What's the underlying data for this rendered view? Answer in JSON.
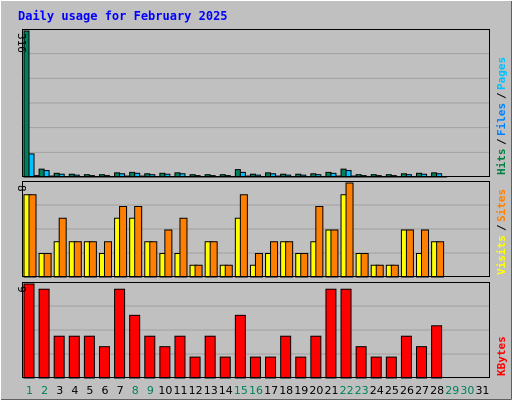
{
  "chart_data": {
    "type": "bar",
    "title": "Daily usage for February 2025",
    "categories": [
      "1",
      "2",
      "3",
      "4",
      "5",
      "6",
      "7",
      "8",
      "9",
      "10",
      "11",
      "12",
      "13",
      "14",
      "15",
      "16",
      "17",
      "18",
      "19",
      "20",
      "21",
      "22",
      "23",
      "24",
      "25",
      "26",
      "27",
      "28",
      "29",
      "30",
      "31"
    ],
    "weekend_days": [
      "1",
      "2",
      "8",
      "9",
      "15",
      "16",
      "22",
      "23",
      "29",
      "30"
    ],
    "panels": [
      {
        "name": "hits",
        "ymax_label": "316",
        "ylim": [
          0,
          316
        ],
        "side_labels": [
          {
            "text": "Hits",
            "color": "#008040"
          },
          {
            "text": "/",
            "color": "#000000"
          },
          {
            "text": "Files",
            "color": "#0080FF"
          },
          {
            "text": "/",
            "color": "#000000"
          },
          {
            "text": "Pages",
            "color": "#00C0FF"
          }
        ],
        "series": [
          {
            "name": "Hits",
            "color": "#00805C",
            "values": [
              316,
              17,
              8,
              6,
              5,
              5,
              9,
              10,
              7,
              8,
              9,
              5,
              5,
              5,
              16,
              6,
              9,
              6,
              6,
              7,
              10,
              17,
              5,
              5,
              5,
              7,
              8,
              9,
              0,
              0,
              0
            ]
          },
          {
            "name": "Files",
            "color": "#00C0FF",
            "values": [
              50,
              14,
              6,
              4,
              3,
              3,
              7,
              8,
              5,
              6,
              7,
              3,
              3,
              3,
              10,
              4,
              7,
              4,
              4,
              5,
              8,
              14,
              3,
              3,
              3,
              5,
              6,
              7,
              0,
              0,
              0
            ]
          },
          {
            "name": "Pages",
            "color": "#00E0FF",
            "values": [
              3,
              2,
              1,
              1,
              1,
              1,
              2,
              2,
              1,
              1,
              1,
              1,
              1,
              1,
              2,
              1,
              2,
              1,
              1,
              1,
              2,
              2,
              1,
              1,
              1,
              1,
              1,
              1,
              0,
              0,
              0
            ]
          }
        ]
      },
      {
        "name": "visits",
        "ymax_label": "8",
        "ylim": [
          0,
          8
        ],
        "side_labels": [
          {
            "text": "Visits",
            "color": "#FFFF00"
          },
          {
            "text": "/",
            "color": "#000000"
          },
          {
            "text": "Sites",
            "color": "#FF8000"
          }
        ],
        "series": [
          {
            "name": "Visits",
            "color": "#FFFF00",
            "values": [
              7,
              2,
              3,
              3,
              3,
              2,
              5,
              5,
              3,
              2,
              2,
              1,
              3,
              1,
              5,
              1,
              2,
              3,
              2,
              3,
              4,
              7,
              2,
              1,
              1,
              4,
              2,
              3,
              0,
              0,
              0
            ]
          },
          {
            "name": "Sites",
            "color": "#FF8000",
            "values": [
              7,
              2,
              5,
              3,
              3,
              3,
              6,
              6,
              3,
              4,
              5,
              1,
              3,
              1,
              7,
              2,
              3,
              3,
              2,
              6,
              4,
              8,
              2,
              1,
              1,
              4,
              4,
              3,
              0,
              0,
              0
            ]
          }
        ]
      },
      {
        "name": "kbytes",
        "ymax_label": "9",
        "ylim": [
          0,
          9
        ],
        "side_labels": [
          {
            "text": "KBytes",
            "color": "#FF0000"
          }
        ],
        "series": [
          {
            "name": "KBytes",
            "color": "#FF0000",
            "values": [
              9,
              8.5,
              4,
              4,
              4,
              3,
              8.5,
              6,
              4,
              3,
              4,
              2,
              4,
              2,
              6,
              2,
              2,
              4,
              2,
              4,
              8.5,
              8.5,
              3,
              2,
              2,
              4,
              3,
              5,
              0,
              0,
              0
            ]
          }
        ]
      }
    ]
  },
  "colors": {
    "background": "#C0C0C0",
    "plot_border": "#000000",
    "grid": "#A0A0A0",
    "title": "#0000FF",
    "weekday_label": "#000000",
    "weekend_label": "#00805C"
  }
}
